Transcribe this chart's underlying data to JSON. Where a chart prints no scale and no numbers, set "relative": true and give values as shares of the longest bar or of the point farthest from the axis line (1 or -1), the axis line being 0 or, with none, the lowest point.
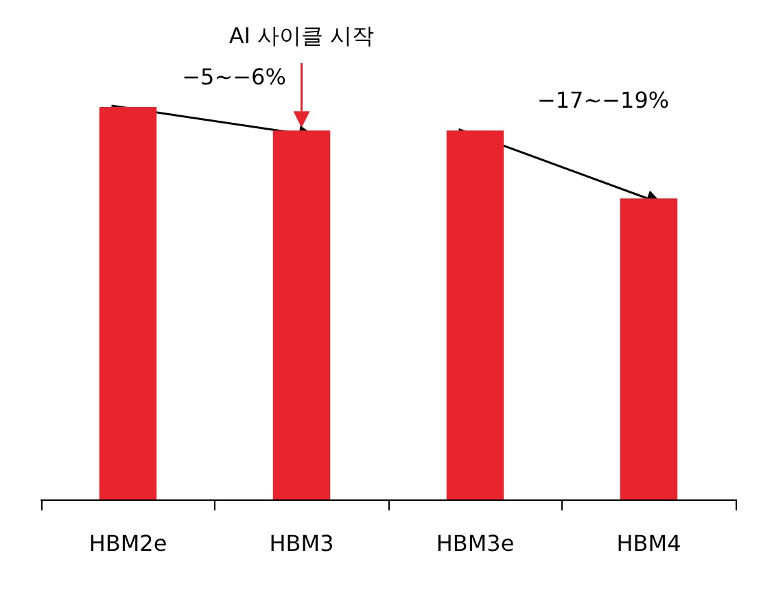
{
  "chart_data": {
    "type": "bar",
    "relative": true,
    "categories": [
      "HBM2e",
      "HBM3",
      "HBM3e",
      "HBM4"
    ],
    "values": [
      1,
      0.94,
      0.94,
      0.767
    ],
    "color": "#e8252e",
    "annotations": [
      "AI 사이클 시작",
      "−5~−6%",
      "−17~−19%"
    ]
  }
}
